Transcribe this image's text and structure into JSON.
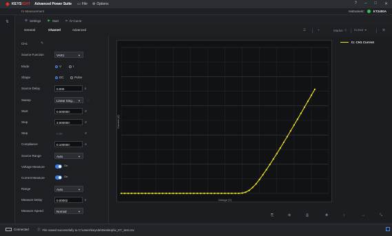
{
  "titlebar": {
    "brand_prefix": "KEYS",
    "brand_suffix": "IGHT",
    "app_name": "Advanced Power Suite",
    "menu": [
      "File",
      "Options"
    ]
  },
  "subbar": {
    "tab_name": "IV Measurement",
    "instrument_label": "Instrument:",
    "instrument_model": "KT2400A"
  },
  "toolbar": {
    "settings": "Settings",
    "start": "Start",
    "iv_curve": "IV Curve"
  },
  "tabs": [
    "General",
    "Channel",
    "Advanced"
  ],
  "active_tab": "Channel",
  "chart_tools": {
    "marker": "Marker",
    "cursor": "Cursor"
  },
  "props": {
    "ch1_label": "CH1",
    "source_function": {
      "label": "Source Function",
      "value": "VAR1"
    },
    "mode": {
      "label": "Mode",
      "opt1": "V",
      "opt2": "I"
    },
    "shape": {
      "label": "Shape",
      "opt1": "DC",
      "opt2": "Pulse"
    },
    "source_delay": {
      "label": "Source Delay",
      "value": "0.000",
      "unit": "s"
    },
    "sweep": {
      "label": "Sweep",
      "value": "Linear Sing..."
    },
    "start": {
      "label": "Start",
      "value": "0.000000",
      "unit": "V"
    },
    "stop": {
      "label": "Stop",
      "value": "3.000000",
      "unit": "V"
    },
    "step": {
      "label": "Step",
      "value": "0.05",
      "unit": "V"
    },
    "compliance": {
      "label": "Compliance",
      "value": "0.100000",
      "unit": "A"
    },
    "source_range": {
      "label": "Source Range",
      "value": "Auto"
    },
    "voltage_measure": {
      "label": "Voltage Measure",
      "state": "On"
    },
    "current_measure": {
      "label": "Current Measure",
      "state": "On"
    },
    "range": {
      "label": "Range",
      "value": "Auto"
    },
    "measure_delay": {
      "label": "Measure Delay",
      "value": "0.00002",
      "unit": "s"
    },
    "measure_speed": {
      "label": "Measure Speed",
      "value": "Normal"
    }
  },
  "legend": {
    "label": "I1: CH1 Current"
  },
  "chart_data": {
    "type": "line",
    "title": "",
    "xlabel": "Voltage (V)",
    "ylabel": "Current (A)",
    "xlim": [
      0,
      3
    ],
    "ylim": [
      0,
      0.1
    ],
    "grid": true,
    "legend": "top-right",
    "series": [
      {
        "name": "I1: CH1 Current",
        "color": "#f0e62a",
        "x": [
          0,
          0.05,
          0.1,
          0.15,
          0.2,
          0.25,
          0.3,
          0.35,
          0.4,
          0.45,
          0.5,
          0.55,
          0.6,
          0.65,
          0.7,
          0.75,
          0.8,
          0.85,
          0.9,
          0.95,
          1.0,
          1.05,
          1.1,
          1.15,
          1.2,
          1.25,
          1.3,
          1.35,
          1.4,
          1.45,
          1.5,
          1.55,
          1.6,
          1.65,
          1.7,
          1.75,
          1.8,
          1.85,
          1.9,
          1.95,
          2.0,
          2.05,
          2.1,
          2.15,
          2.2,
          2.25,
          2.3,
          2.35,
          2.4,
          2.45,
          2.5,
          2.55,
          2.6,
          2.65,
          2.7,
          2.75,
          2.8
        ],
        "y": [
          0,
          0,
          0,
          0,
          0,
          0,
          0,
          0,
          0,
          0,
          0,
          0,
          0,
          0,
          0,
          0,
          0,
          0,
          0,
          0,
          0,
          0,
          0,
          0,
          0,
          0,
          0,
          0,
          0,
          0,
          0,
          0,
          0,
          0,
          0,
          0.0002,
          0.0008,
          0.002,
          0.004,
          0.0065,
          0.0095,
          0.0128,
          0.0162,
          0.0198,
          0.0235,
          0.0272,
          0.031,
          0.0349,
          0.0388,
          0.0428,
          0.0468,
          0.0508,
          0.0549,
          0.059,
          0.0631,
          0.0672,
          0.0713
        ]
      }
    ]
  },
  "status": {
    "connection": "Connected",
    "message": "File saved successfully to C:\\Users\\keysite\\Desktop\\iv_KT_test.csv"
  }
}
